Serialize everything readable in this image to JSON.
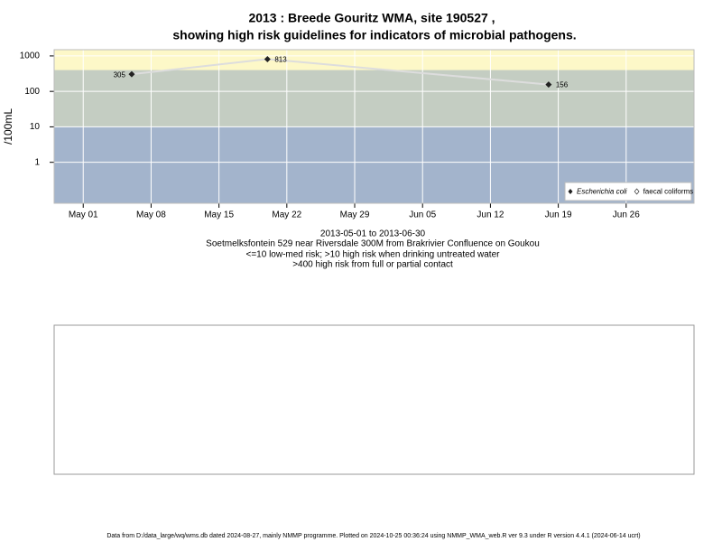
{
  "chart_data": {
    "type": "line",
    "title": [
      "2013 : Breede Gouritz WMA, site 190527 ,",
      "showing high risk guidelines for indicators of microbial pathogens."
    ],
    "y_label": "/100mL",
    "x_label": [
      "2013-05-01 to 2013-06-30",
      "Soetmelksfontein 529 near Riversdale 300M from Brakrivier Confluence on Goukou",
      "<=10 low-med risk; >10 high risk when drinking untreated water",
      ">400 high risk from full or partial contact"
    ],
    "x": [
      "2013-05-06",
      "2013-05-20",
      "2013-06-18"
    ],
    "series": [
      {
        "name": "Escherichia coli",
        "color": "#222222",
        "line_color": "#dddddd",
        "values": [
          305,
          813,
          156
        ]
      },
      {
        "name": "faecal coliforms",
        "color": "#ffffff",
        "values": [
          null,
          null,
          null
        ]
      }
    ],
    "xlim": [
      "2013-04-28",
      "2013-07-03"
    ],
    "xticks": [
      {
        "value": "2013-05-01",
        "label": "May 01"
      },
      {
        "value": "2013-05-08",
        "label": "May 08"
      },
      {
        "value": "2013-05-15",
        "label": "May 15"
      },
      {
        "value": "2013-05-22",
        "label": "May 22"
      },
      {
        "value": "2013-05-29",
        "label": "May 29"
      },
      {
        "value": "2013-06-05",
        "label": "Jun 05"
      },
      {
        "value": "2013-06-12",
        "label": "Jun 12"
      },
      {
        "value": "2013-06-19",
        "label": "Jun 19"
      },
      {
        "value": "2013-06-26",
        "label": "Jun 26"
      }
    ],
    "ylim": [
      0.07,
      1500
    ],
    "yticks": [
      1,
      10,
      100,
      1000
    ],
    "log_y": true,
    "grid": true,
    "thresholds": [
      10,
      400
    ],
    "band_colors": [
      "#a3b4cc",
      "#c4cdc2",
      "#fdf8c8"
    ],
    "legend": "bottom-right",
    "footer": "Data from D:/data_large/wq/wms.db dated 2024-08-27, mainly NMMP programme. Plotted on 2024-10-25 00:36:24 using NMMP_WMA_web.R ver 9.3 under R version 4.4.1 (2024-06-14 ucrt)"
  }
}
